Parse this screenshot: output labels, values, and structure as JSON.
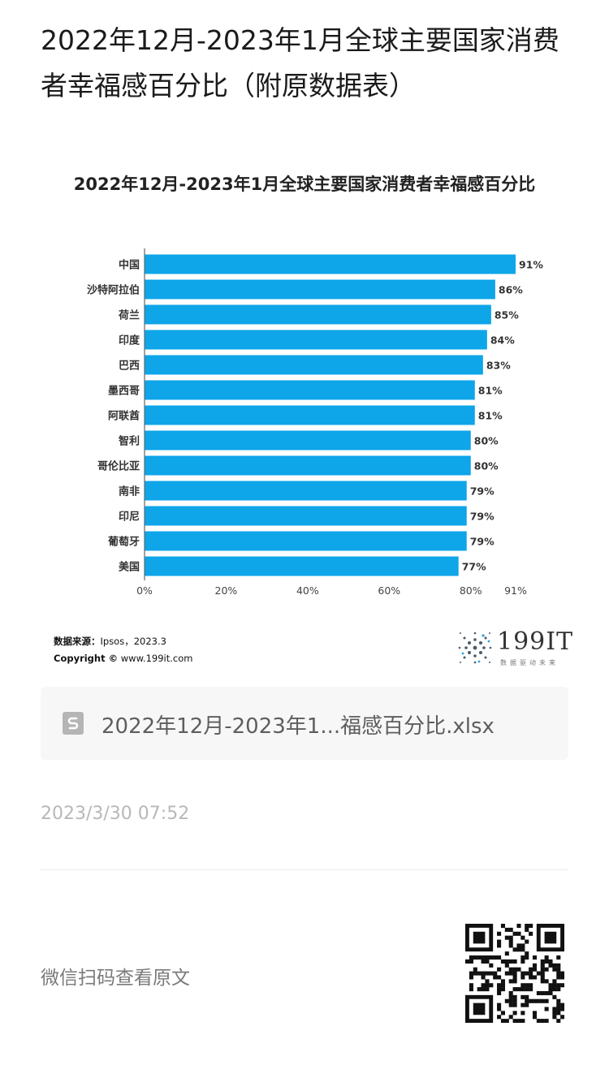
{
  "article": {
    "title": "2022年12月-2023年1月全球主要国家消费者幸福感百分比（附原数据表）"
  },
  "chart_data": {
    "type": "bar",
    "orientation": "horizontal",
    "title": "2022年12月-2023年1月全球主要国家消费者幸福感百分比",
    "categories": [
      "中国",
      "沙特阿拉伯",
      "荷兰",
      "印度",
      "巴西",
      "墨西哥",
      "阿联酋",
      "智利",
      "哥伦比亚",
      "南非",
      "印尼",
      "葡萄牙",
      "美国"
    ],
    "values": [
      91,
      86,
      85,
      84,
      83,
      81,
      81,
      80,
      80,
      79,
      79,
      79,
      77
    ],
    "value_labels": [
      "91%",
      "86%",
      "85%",
      "84%",
      "83%",
      "81%",
      "81%",
      "80%",
      "80%",
      "79%",
      "79%",
      "79%",
      "77%"
    ],
    "xlim": [
      0,
      91
    ],
    "x_ticks": [
      0,
      20,
      40,
      60,
      80,
      91
    ],
    "x_tick_labels": [
      "0%",
      "20%",
      "40%",
      "60%",
      "80%",
      "91%"
    ],
    "bar_color": "#0ea5e9",
    "grid": false,
    "legend": "none"
  },
  "source": {
    "label": "数据来源：",
    "text": "Ipsos，2023.3",
    "copyright_label": "Copyright ©",
    "copyright_text": "www.199it.com"
  },
  "logo": {
    "text": "199IT",
    "tagline": "数据驱动未来"
  },
  "file": {
    "icon": "spreadsheet-icon",
    "name": "2022年12月-2023年1...福感百分比.xlsx"
  },
  "timestamp": "2023/3/30 07:52",
  "wechat": {
    "label": "微信扫码查看原文",
    "icon": "qr-code-icon"
  }
}
